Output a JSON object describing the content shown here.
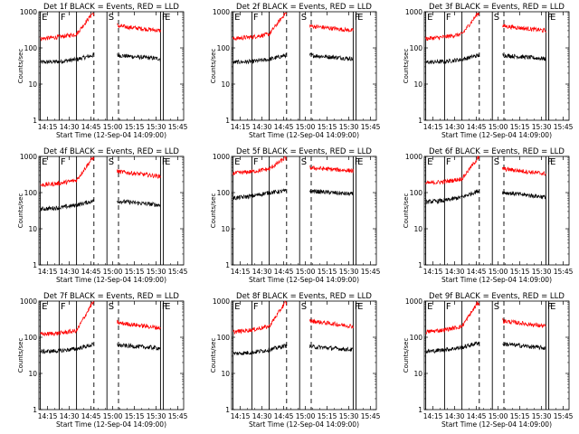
{
  "colors": {
    "background": "#ffffff",
    "axes": "#000000",
    "black_series": "#000000",
    "red_series": "#ff0000"
  },
  "chart_data": [
    {
      "type": "line",
      "title": "Det 1f BLACK = Events, RED = LLD",
      "xlabel": "Start Time (12-Sep-04 14:09:00)",
      "ylabel": "Counts/sec",
      "yscale": "log",
      "xlim": [
        "14:09",
        "15:49"
      ],
      "ylim": [
        1,
        1000
      ],
      "x_ticks": [
        "14:15",
        "14:30",
        "14:45",
        "15:00",
        "15:15",
        "15:30",
        "15:45"
      ],
      "y_ticks": [
        "1",
        "10",
        "100",
        "1000"
      ],
      "grid": false,
      "legend": "none",
      "markers": [
        {
          "label": "E",
          "x": "14:10",
          "style": "solid"
        },
        {
          "label": "F",
          "x": "14:23",
          "style": "solid"
        },
        {
          "label": "",
          "x": "14:35",
          "style": "solid"
        },
        {
          "label": "",
          "x": "14:47",
          "style": "dashed"
        },
        {
          "label": "S",
          "x": "14:56",
          "style": "solid"
        },
        {
          "label": "",
          "x": "15:04",
          "style": "dashed"
        },
        {
          "label": "F",
          "x": "15:33",
          "style": "solid"
        },
        {
          "label": "E",
          "x": "15:35",
          "style": "solid"
        }
      ],
      "series": [
        {
          "name": "BLACK = Events",
          "color": "#000000",
          "x": [
            "14:10",
            "14:23",
            "14:35",
            "14:46",
            "14:56",
            "15:04",
            "15:33"
          ],
          "y": [
            40,
            42,
            48,
            62,
            68,
            62,
            50
          ]
        },
        {
          "name": "RED = LLD",
          "color": "#ff0000",
          "x": [
            "14:10",
            "14:23",
            "14:35",
            "14:46",
            "14:56",
            "15:04",
            "15:33"
          ],
          "y": [
            180,
            200,
            240,
            900,
            600,
            400,
            300
          ]
        }
      ]
    },
    {
      "type": "line",
      "title": "Det 2f BLACK = Events, RED = LLD",
      "xlabel": "Start Time (12-Sep-04 14:09:00)",
      "ylabel": "Counts/sec",
      "yscale": "log",
      "xlim": [
        "14:09",
        "15:49"
      ],
      "ylim": [
        1,
        1000
      ],
      "x_ticks": [
        "14:15",
        "14:30",
        "14:45",
        "15:00",
        "15:15",
        "15:30",
        "15:45"
      ],
      "y_ticks": [
        "1",
        "10",
        "100",
        "1000"
      ],
      "grid": false,
      "legend": "none",
      "markers": [
        {
          "label": "E",
          "x": "14:10",
          "style": "solid"
        },
        {
          "label": "F",
          "x": "14:23",
          "style": "solid"
        },
        {
          "label": "",
          "x": "14:35",
          "style": "solid"
        },
        {
          "label": "",
          "x": "14:47",
          "style": "dashed"
        },
        {
          "label": "S",
          "x": "14:56",
          "style": "solid"
        },
        {
          "label": "",
          "x": "15:04",
          "style": "dashed"
        },
        {
          "label": "F",
          "x": "15:33",
          "style": "solid"
        },
        {
          "label": "E",
          "x": "15:35",
          "style": "solid"
        }
      ],
      "series": [
        {
          "name": "BLACK = Events",
          "color": "#000000",
          "x": [
            "14:10",
            "14:23",
            "14:35",
            "14:46",
            "14:56",
            "15:04",
            "15:33"
          ],
          "y": [
            40,
            42,
            48,
            62,
            68,
            62,
            50
          ]
        },
        {
          "name": "RED = LLD",
          "color": "#ff0000",
          "x": [
            "14:10",
            "14:23",
            "14:35",
            "14:46",
            "14:56",
            "15:04",
            "15:33"
          ],
          "y": [
            180,
            200,
            240,
            900,
            600,
            400,
            300
          ]
        }
      ]
    },
    {
      "type": "line",
      "title": "Det 3f BLACK = Events, RED = LLD",
      "xlabel": "Start Time (12-Sep-04 14:09:00)",
      "ylabel": "Counts/sec",
      "yscale": "log",
      "xlim": [
        "14:09",
        "15:49"
      ],
      "ylim": [
        1,
        1000
      ],
      "x_ticks": [
        "14:15",
        "14:30",
        "14:45",
        "15:00",
        "15:15",
        "15:30",
        "15:45"
      ],
      "y_ticks": [
        "1",
        "10",
        "100",
        "1000"
      ],
      "grid": false,
      "legend": "none",
      "markers": [
        {
          "label": "E",
          "x": "14:10",
          "style": "solid"
        },
        {
          "label": "F",
          "x": "14:23",
          "style": "solid"
        },
        {
          "label": "",
          "x": "14:35",
          "style": "solid"
        },
        {
          "label": "",
          "x": "14:47",
          "style": "dashed"
        },
        {
          "label": "S",
          "x": "14:56",
          "style": "solid"
        },
        {
          "label": "",
          "x": "15:04",
          "style": "dashed"
        },
        {
          "label": "F",
          "x": "15:33",
          "style": "solid"
        },
        {
          "label": "E",
          "x": "15:35",
          "style": "solid"
        }
      ],
      "series": [
        {
          "name": "BLACK = Events",
          "color": "#000000",
          "x": [
            "14:10",
            "14:23",
            "14:35",
            "14:46",
            "14:56",
            "15:04",
            "15:33"
          ],
          "y": [
            40,
            42,
            48,
            62,
            68,
            62,
            50
          ]
        },
        {
          "name": "RED = LLD",
          "color": "#ff0000",
          "x": [
            "14:10",
            "14:23",
            "14:35",
            "14:46",
            "14:56",
            "15:04",
            "15:33"
          ],
          "y": [
            180,
            200,
            240,
            900,
            600,
            400,
            300
          ]
        }
      ]
    },
    {
      "type": "line",
      "title": "Det 4f BLACK = Events, RED = LLD",
      "xlabel": "Start Time (12-Sep-04 14:09:00)",
      "ylabel": "Counts/sec",
      "yscale": "log",
      "xlim": [
        "14:09",
        "15:49"
      ],
      "ylim": [
        1,
        1000
      ],
      "x_ticks": [
        "14:15",
        "14:30",
        "14:45",
        "15:00",
        "15:15",
        "15:30",
        "15:45"
      ],
      "y_ticks": [
        "1",
        "10",
        "100",
        "1000"
      ],
      "grid": false,
      "legend": "none",
      "markers": [
        {
          "label": "E",
          "x": "14:10",
          "style": "solid"
        },
        {
          "label": "F",
          "x": "14:23",
          "style": "solid"
        },
        {
          "label": "",
          "x": "14:35",
          "style": "solid"
        },
        {
          "label": "",
          "x": "14:47",
          "style": "dashed"
        },
        {
          "label": "S",
          "x": "14:56",
          "style": "solid"
        },
        {
          "label": "",
          "x": "15:04",
          "style": "dashed"
        },
        {
          "label": "F",
          "x": "15:33",
          "style": "solid"
        },
        {
          "label": "E",
          "x": "15:35",
          "style": "solid"
        }
      ],
      "series": [
        {
          "name": "BLACK = Events",
          "color": "#000000",
          "x": [
            "14:10",
            "14:23",
            "14:35",
            "14:46",
            "14:56",
            "15:04",
            "15:33"
          ],
          "y": [
            35,
            38,
            45,
            58,
            64,
            58,
            45
          ]
        },
        {
          "name": "RED = LLD",
          "color": "#ff0000",
          "x": [
            "14:10",
            "14:23",
            "14:35",
            "14:46",
            "14:56",
            "15:04",
            "15:33"
          ],
          "y": [
            160,
            180,
            220,
            900,
            560,
            380,
            280
          ]
        }
      ]
    },
    {
      "type": "line",
      "title": "Det 5f BLACK = Events, RED = LLD",
      "xlabel": "Start Time (12-Sep-04 14:09:00)",
      "ylabel": "Counts/sec",
      "yscale": "log",
      "xlim": [
        "14:09",
        "15:49"
      ],
      "ylim": [
        1,
        1000
      ],
      "x_ticks": [
        "14:15",
        "14:30",
        "14:45",
        "15:00",
        "15:15",
        "15:30",
        "15:45"
      ],
      "y_ticks": [
        "1",
        "10",
        "100",
        "1000"
      ],
      "grid": false,
      "legend": "none",
      "markers": [
        {
          "label": "E",
          "x": "14:10",
          "style": "solid"
        },
        {
          "label": "F",
          "x": "14:23",
          "style": "solid"
        },
        {
          "label": "",
          "x": "14:35",
          "style": "solid"
        },
        {
          "label": "",
          "x": "14:47",
          "style": "dashed"
        },
        {
          "label": "S",
          "x": "14:56",
          "style": "solid"
        },
        {
          "label": "",
          "x": "15:04",
          "style": "dashed"
        },
        {
          "label": "F",
          "x": "15:33",
          "style": "solid"
        },
        {
          "label": "E",
          "x": "15:35",
          "style": "solid"
        }
      ],
      "series": [
        {
          "name": "BLACK = Events",
          "color": "#000000",
          "x": [
            "14:10",
            "14:23",
            "14:35",
            "14:46",
            "14:56",
            "15:04",
            "15:33"
          ],
          "y": [
            70,
            80,
            100,
            110,
            120,
            110,
            90
          ]
        },
        {
          "name": "RED = LLD",
          "color": "#ff0000",
          "x": [
            "14:10",
            "14:23",
            "14:35",
            "14:46",
            "14:56",
            "15:04",
            "15:33"
          ],
          "y": [
            340,
            380,
            450,
            900,
            560,
            480,
            400
          ]
        }
      ]
    },
    {
      "type": "line",
      "title": "Det 6f BLACK = Events, RED = LLD",
      "xlabel": "Start Time (12-Sep-04 14:09:00)",
      "ylabel": "Counts/sec",
      "yscale": "log",
      "xlim": [
        "14:09",
        "15:49"
      ],
      "ylim": [
        1,
        1000
      ],
      "x_ticks": [
        "14:15",
        "14:30",
        "14:45",
        "15:00",
        "15:15",
        "15:30",
        "15:45"
      ],
      "y_ticks": [
        "1",
        "10",
        "100",
        "1000"
      ],
      "grid": false,
      "legend": "none",
      "markers": [
        {
          "label": "E",
          "x": "14:10",
          "style": "solid"
        },
        {
          "label": "F",
          "x": "14:23",
          "style": "solid"
        },
        {
          "label": "",
          "x": "14:35",
          "style": "solid"
        },
        {
          "label": "",
          "x": "14:47",
          "style": "dashed"
        },
        {
          "label": "S",
          "x": "14:56",
          "style": "solid"
        },
        {
          "label": "",
          "x": "15:04",
          "style": "dashed"
        },
        {
          "label": "F",
          "x": "15:33",
          "style": "solid"
        },
        {
          "label": "E",
          "x": "15:35",
          "style": "solid"
        }
      ],
      "series": [
        {
          "name": "BLACK = Events",
          "color": "#000000",
          "x": [
            "14:10",
            "14:23",
            "14:35",
            "14:46",
            "14:56",
            "15:04",
            "15:33"
          ],
          "y": [
            55,
            60,
            75,
            110,
            120,
            100,
            75
          ]
        },
        {
          "name": "RED = LLD",
          "color": "#ff0000",
          "x": [
            "14:10",
            "14:23",
            "14:35",
            "14:46",
            "14:56",
            "15:04",
            "15:33"
          ],
          "y": [
            180,
            200,
            240,
            900,
            650,
            450,
            330
          ]
        }
      ]
    },
    {
      "type": "line",
      "title": "Det 7f BLACK = Events, RED = LLD",
      "xlabel": "Start Time (12-Sep-04 14:09:00)",
      "ylabel": "Counts/sec",
      "yscale": "log",
      "xlim": [
        "14:09",
        "15:49"
      ],
      "ylim": [
        1,
        1000
      ],
      "x_ticks": [
        "14:15",
        "14:30",
        "14:45",
        "15:00",
        "15:15",
        "15:30",
        "15:45"
      ],
      "y_ticks": [
        "1",
        "10",
        "100",
        "1000"
      ],
      "grid": false,
      "legend": "none",
      "markers": [
        {
          "label": "E",
          "x": "14:10",
          "style": "solid"
        },
        {
          "label": "F",
          "x": "14:23",
          "style": "solid"
        },
        {
          "label": "",
          "x": "14:35",
          "style": "solid"
        },
        {
          "label": "",
          "x": "14:47",
          "style": "dashed"
        },
        {
          "label": "S",
          "x": "14:56",
          "style": "solid"
        },
        {
          "label": "",
          "x": "15:04",
          "style": "dashed"
        },
        {
          "label": "F",
          "x": "15:33",
          "style": "solid"
        },
        {
          "label": "E",
          "x": "15:35",
          "style": "solid"
        }
      ],
      "series": [
        {
          "name": "BLACK = Events",
          "color": "#000000",
          "x": [
            "14:10",
            "14:23",
            "14:35",
            "14:46",
            "14:56",
            "15:04",
            "15:33"
          ],
          "y": [
            40,
            42,
            48,
            62,
            68,
            60,
            50
          ]
        },
        {
          "name": "RED = LLD",
          "color": "#ff0000",
          "x": [
            "14:10",
            "14:23",
            "14:35",
            "14:46",
            "14:56",
            "15:04",
            "15:33"
          ],
          "y": [
            120,
            130,
            150,
            900,
            400,
            250,
            180
          ]
        }
      ]
    },
    {
      "type": "line",
      "title": "Det 8f BLACK = Events, RED = LLD",
      "xlabel": "Start Time (12-Sep-04 14:09:00)",
      "ylabel": "Counts/sec",
      "yscale": "log",
      "xlim": [
        "14:09",
        "15:49"
      ],
      "ylim": [
        1,
        1000
      ],
      "x_ticks": [
        "14:15",
        "14:30",
        "14:45",
        "15:00",
        "15:15",
        "15:30",
        "15:45"
      ],
      "y_ticks": [
        "1",
        "10",
        "100",
        "1000"
      ],
      "grid": false,
      "legend": "none",
      "markers": [
        {
          "label": "E",
          "x": "14:10",
          "style": "solid"
        },
        {
          "label": "F",
          "x": "14:23",
          "style": "solid"
        },
        {
          "label": "",
          "x": "14:35",
          "style": "solid"
        },
        {
          "label": "",
          "x": "14:47",
          "style": "dashed"
        },
        {
          "label": "S",
          "x": "14:56",
          "style": "solid"
        },
        {
          "label": "",
          "x": "15:04",
          "style": "dashed"
        },
        {
          "label": "F",
          "x": "15:33",
          "style": "solid"
        },
        {
          "label": "E",
          "x": "15:35",
          "style": "solid"
        }
      ],
      "series": [
        {
          "name": "BLACK = Events",
          "color": "#000000",
          "x": [
            "14:10",
            "14:23",
            "14:35",
            "14:46",
            "14:56",
            "15:04",
            "15:33"
          ],
          "y": [
            35,
            38,
            45,
            58,
            60,
            55,
            45
          ]
        },
        {
          "name": "RED = LLD",
          "color": "#ff0000",
          "x": [
            "14:10",
            "14:23",
            "14:35",
            "14:46",
            "14:56",
            "15:04",
            "15:33"
          ],
          "y": [
            140,
            160,
            200,
            900,
            450,
            280,
            200
          ]
        }
      ]
    },
    {
      "type": "line",
      "title": "Det 9f BLACK = Events, RED = LLD",
      "xlabel": "Start Time (12-Sep-04 14:09:00)",
      "ylabel": "Counts/sec",
      "yscale": "log",
      "xlim": [
        "14:09",
        "15:49"
      ],
      "ylim": [
        1,
        1000
      ],
      "x_ticks": [
        "14:15",
        "14:30",
        "14:45",
        "15:00",
        "15:15",
        "15:30",
        "15:45"
      ],
      "y_ticks": [
        "1",
        "10",
        "100",
        "1000"
      ],
      "grid": false,
      "legend": "none",
      "markers": [
        {
          "label": "E",
          "x": "14:10",
          "style": "solid"
        },
        {
          "label": "F",
          "x": "14:23",
          "style": "solid"
        },
        {
          "label": "",
          "x": "14:35",
          "style": "solid"
        },
        {
          "label": "",
          "x": "14:47",
          "style": "dashed"
        },
        {
          "label": "S",
          "x": "14:56",
          "style": "solid"
        },
        {
          "label": "",
          "x": "15:04",
          "style": "dashed"
        },
        {
          "label": "F",
          "x": "15:33",
          "style": "solid"
        },
        {
          "label": "E",
          "x": "15:35",
          "style": "solid"
        }
      ],
      "series": [
        {
          "name": "BLACK = Events",
          "color": "#000000",
          "x": [
            "14:10",
            "14:23",
            "14:35",
            "14:46",
            "14:56",
            "15:04",
            "15:33"
          ],
          "y": [
            40,
            45,
            52,
            70,
            75,
            65,
            50
          ]
        },
        {
          "name": "RED = LLD",
          "color": "#ff0000",
          "x": [
            "14:10",
            "14:23",
            "14:35",
            "14:46",
            "14:56",
            "15:04",
            "15:33"
          ],
          "y": [
            140,
            160,
            200,
            900,
            450,
            280,
            200
          ]
        }
      ]
    }
  ]
}
